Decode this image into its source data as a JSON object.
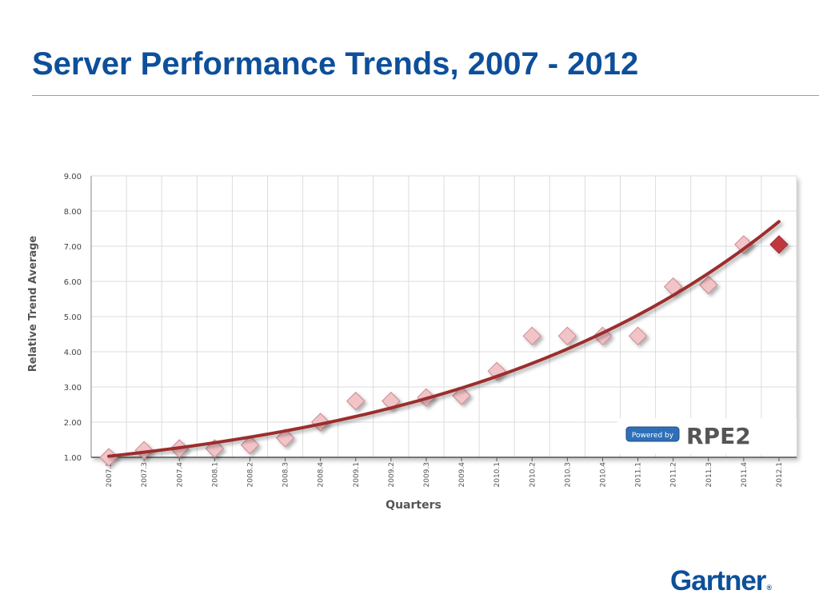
{
  "slide": {
    "title": "Server Performance Trends, 2007 - 2012"
  },
  "chart_data": {
    "type": "scatter",
    "title": "",
    "xlabel": "Quarters",
    "ylabel": "Relative Trend Average",
    "categories": [
      "2007.2",
      "2007.3",
      "2007.4",
      "2008.1",
      "2008.2",
      "2008.3",
      "2008.4",
      "2009.1",
      "2009.2",
      "2009.3",
      "2009.4",
      "2010.1",
      "2010.2",
      "2010.3",
      "2010.4",
      "2011.1",
      "2011.2",
      "2011.3",
      "2011.4",
      "2012.1"
    ],
    "values": [
      1.0,
      1.2,
      1.25,
      1.25,
      1.35,
      1.55,
      2.0,
      2.6,
      2.6,
      2.7,
      2.75,
      3.45,
      4.45,
      4.45,
      4.45,
      4.45,
      5.85,
      5.9,
      7.05,
      7.05
    ],
    "ylim": [
      1.0,
      9.0
    ],
    "yticks": [
      "1.00",
      "2.00",
      "3.00",
      "4.00",
      "5.00",
      "6.00",
      "7.00",
      "8.00",
      "9.00"
    ],
    "grid": true,
    "trendline": {
      "type": "exponential",
      "start": 1.03,
      "end": 7.7
    },
    "colors": {
      "marker_fill": "#f2c4c8",
      "marker_stroke": "#c98a90",
      "last_marker": "#c0393e",
      "trend": "#9b2d2d"
    }
  },
  "badge": {
    "powered_by": "Powered by",
    "brand": "RPE2"
  },
  "logo": {
    "name": "Gartner",
    "mark": "®"
  }
}
